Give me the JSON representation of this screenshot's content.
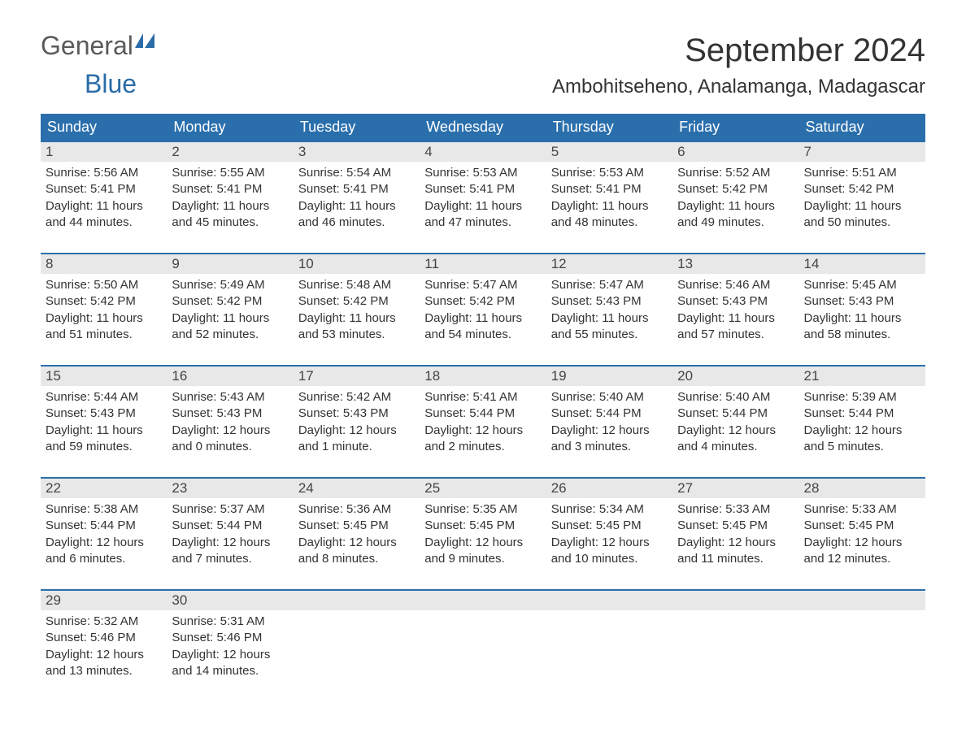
{
  "brand": {
    "part1": "General",
    "part2": "Blue"
  },
  "title": "September 2024",
  "location": "Ambohitseheno, Analamanga, Madagascar",
  "colors": {
    "header_bg": "#2a6fac",
    "header_text": "#ffffff",
    "cell_border": "#2a6fac",
    "daynum_bg": "#e8e8e8",
    "body_text": "#333333",
    "page_bg": "#ffffff",
    "logo_general": "#5a5a5a",
    "logo_blue": "#2a6ca8"
  },
  "day_headers": [
    "Sunday",
    "Monday",
    "Tuesday",
    "Wednesday",
    "Thursday",
    "Friday",
    "Saturday"
  ],
  "weeks": [
    [
      {
        "n": "1",
        "sr": "Sunrise: 5:56 AM",
        "ss": "Sunset: 5:41 PM",
        "d1": "Daylight: 11 hours",
        "d2": "and 44 minutes."
      },
      {
        "n": "2",
        "sr": "Sunrise: 5:55 AM",
        "ss": "Sunset: 5:41 PM",
        "d1": "Daylight: 11 hours",
        "d2": "and 45 minutes."
      },
      {
        "n": "3",
        "sr": "Sunrise: 5:54 AM",
        "ss": "Sunset: 5:41 PM",
        "d1": "Daylight: 11 hours",
        "d2": "and 46 minutes."
      },
      {
        "n": "4",
        "sr": "Sunrise: 5:53 AM",
        "ss": "Sunset: 5:41 PM",
        "d1": "Daylight: 11 hours",
        "d2": "and 47 minutes."
      },
      {
        "n": "5",
        "sr": "Sunrise: 5:53 AM",
        "ss": "Sunset: 5:41 PM",
        "d1": "Daylight: 11 hours",
        "d2": "and 48 minutes."
      },
      {
        "n": "6",
        "sr": "Sunrise: 5:52 AM",
        "ss": "Sunset: 5:42 PM",
        "d1": "Daylight: 11 hours",
        "d2": "and 49 minutes."
      },
      {
        "n": "7",
        "sr": "Sunrise: 5:51 AM",
        "ss": "Sunset: 5:42 PM",
        "d1": "Daylight: 11 hours",
        "d2": "and 50 minutes."
      }
    ],
    [
      {
        "n": "8",
        "sr": "Sunrise: 5:50 AM",
        "ss": "Sunset: 5:42 PM",
        "d1": "Daylight: 11 hours",
        "d2": "and 51 minutes."
      },
      {
        "n": "9",
        "sr": "Sunrise: 5:49 AM",
        "ss": "Sunset: 5:42 PM",
        "d1": "Daylight: 11 hours",
        "d2": "and 52 minutes."
      },
      {
        "n": "10",
        "sr": "Sunrise: 5:48 AM",
        "ss": "Sunset: 5:42 PM",
        "d1": "Daylight: 11 hours",
        "d2": "and 53 minutes."
      },
      {
        "n": "11",
        "sr": "Sunrise: 5:47 AM",
        "ss": "Sunset: 5:42 PM",
        "d1": "Daylight: 11 hours",
        "d2": "and 54 minutes."
      },
      {
        "n": "12",
        "sr": "Sunrise: 5:47 AM",
        "ss": "Sunset: 5:43 PM",
        "d1": "Daylight: 11 hours",
        "d2": "and 55 minutes."
      },
      {
        "n": "13",
        "sr": "Sunrise: 5:46 AM",
        "ss": "Sunset: 5:43 PM",
        "d1": "Daylight: 11 hours",
        "d2": "and 57 minutes."
      },
      {
        "n": "14",
        "sr": "Sunrise: 5:45 AM",
        "ss": "Sunset: 5:43 PM",
        "d1": "Daylight: 11 hours",
        "d2": "and 58 minutes."
      }
    ],
    [
      {
        "n": "15",
        "sr": "Sunrise: 5:44 AM",
        "ss": "Sunset: 5:43 PM",
        "d1": "Daylight: 11 hours",
        "d2": "and 59 minutes."
      },
      {
        "n": "16",
        "sr": "Sunrise: 5:43 AM",
        "ss": "Sunset: 5:43 PM",
        "d1": "Daylight: 12 hours",
        "d2": "and 0 minutes."
      },
      {
        "n": "17",
        "sr": "Sunrise: 5:42 AM",
        "ss": "Sunset: 5:43 PM",
        "d1": "Daylight: 12 hours",
        "d2": "and 1 minute."
      },
      {
        "n": "18",
        "sr": "Sunrise: 5:41 AM",
        "ss": "Sunset: 5:44 PM",
        "d1": "Daylight: 12 hours",
        "d2": "and 2 minutes."
      },
      {
        "n": "19",
        "sr": "Sunrise: 5:40 AM",
        "ss": "Sunset: 5:44 PM",
        "d1": "Daylight: 12 hours",
        "d2": "and 3 minutes."
      },
      {
        "n": "20",
        "sr": "Sunrise: 5:40 AM",
        "ss": "Sunset: 5:44 PM",
        "d1": "Daylight: 12 hours",
        "d2": "and 4 minutes."
      },
      {
        "n": "21",
        "sr": "Sunrise: 5:39 AM",
        "ss": "Sunset: 5:44 PM",
        "d1": "Daylight: 12 hours",
        "d2": "and 5 minutes."
      }
    ],
    [
      {
        "n": "22",
        "sr": "Sunrise: 5:38 AM",
        "ss": "Sunset: 5:44 PM",
        "d1": "Daylight: 12 hours",
        "d2": "and 6 minutes."
      },
      {
        "n": "23",
        "sr": "Sunrise: 5:37 AM",
        "ss": "Sunset: 5:44 PM",
        "d1": "Daylight: 12 hours",
        "d2": "and 7 minutes."
      },
      {
        "n": "24",
        "sr": "Sunrise: 5:36 AM",
        "ss": "Sunset: 5:45 PM",
        "d1": "Daylight: 12 hours",
        "d2": "and 8 minutes."
      },
      {
        "n": "25",
        "sr": "Sunrise: 5:35 AM",
        "ss": "Sunset: 5:45 PM",
        "d1": "Daylight: 12 hours",
        "d2": "and 9 minutes."
      },
      {
        "n": "26",
        "sr": "Sunrise: 5:34 AM",
        "ss": "Sunset: 5:45 PM",
        "d1": "Daylight: 12 hours",
        "d2": "and 10 minutes."
      },
      {
        "n": "27",
        "sr": "Sunrise: 5:33 AM",
        "ss": "Sunset: 5:45 PM",
        "d1": "Daylight: 12 hours",
        "d2": "and 11 minutes."
      },
      {
        "n": "28",
        "sr": "Sunrise: 5:33 AM",
        "ss": "Sunset: 5:45 PM",
        "d1": "Daylight: 12 hours",
        "d2": "and 12 minutes."
      }
    ],
    [
      {
        "n": "29",
        "sr": "Sunrise: 5:32 AM",
        "ss": "Sunset: 5:46 PM",
        "d1": "Daylight: 12 hours",
        "d2": "and 13 minutes."
      },
      {
        "n": "30",
        "sr": "Sunrise: 5:31 AM",
        "ss": "Sunset: 5:46 PM",
        "d1": "Daylight: 12 hours",
        "d2": "and 14 minutes."
      },
      {
        "empty": true
      },
      {
        "empty": true
      },
      {
        "empty": true
      },
      {
        "empty": true
      },
      {
        "empty": true
      }
    ]
  ]
}
